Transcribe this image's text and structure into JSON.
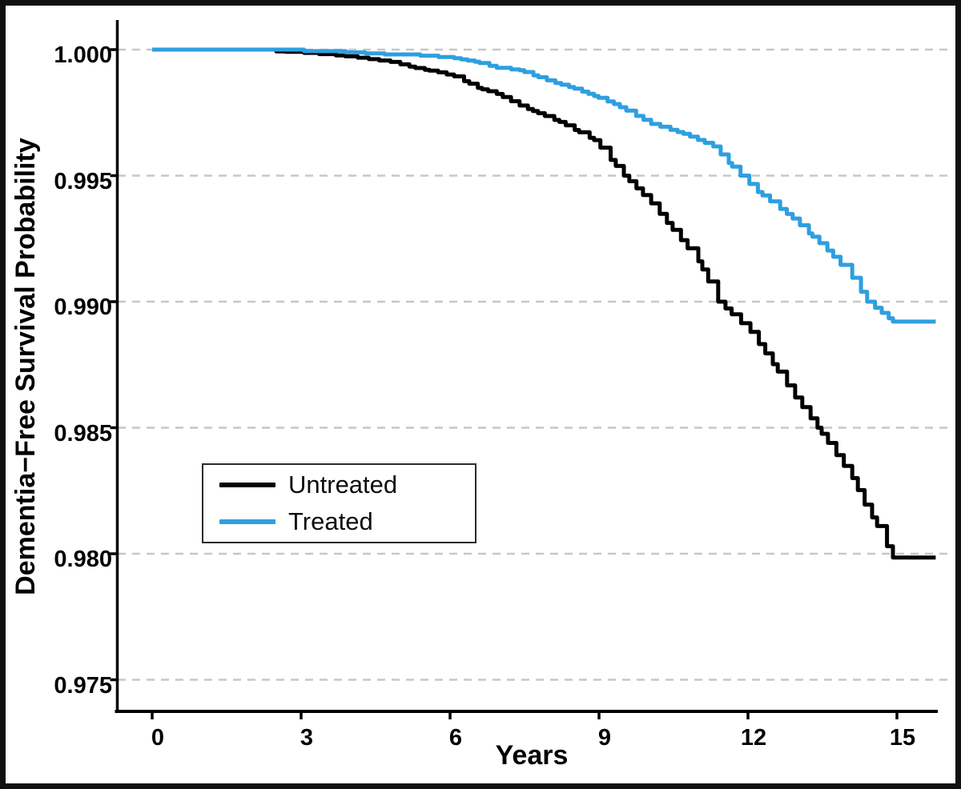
{
  "figure": {
    "y_axis_title": "Dementia−Free Survival Probability",
    "x_axis_title": "Years",
    "y_tick_labels": [
      "1.000",
      "0.995",
      "0.990",
      "0.985",
      "0.980",
      "0.975"
    ],
    "x_tick_labels": [
      "0",
      "3",
      "6",
      "9",
      "12",
      "15"
    ]
  },
  "legend": {
    "items": [
      {
        "label": "Untreated",
        "color": "#000000"
      },
      {
        "label": "Treated",
        "color": "#2E9FDF"
      }
    ]
  },
  "colors": {
    "untreated_line": "#000000",
    "treated_line": "#2E9FDF",
    "gridline": "#c7c7c7",
    "axis": "#000000",
    "background": "#ffffff",
    "outer_border": "#101010"
  },
  "chart_data": {
    "type": "line",
    "subtype": "kaplan-meier-step",
    "title": "",
    "xlabel": "Years",
    "ylabel": "Dementia−Free Survival Probability",
    "xlim": [
      0,
      15.8
    ],
    "ylim": [
      0.9735,
      1.0005
    ],
    "x_ticks": [
      0,
      3,
      6,
      9,
      12,
      15
    ],
    "y_ticks": [
      1.0,
      0.995,
      0.99,
      0.985,
      0.98,
      0.975
    ],
    "grid": "horizontal-dashed",
    "legend_position": "inside-left-middle",
    "series": [
      {
        "name": "Untreated",
        "color": "#000000",
        "points": [
          [
            0,
            1.0
          ],
          [
            2.35,
            1.0
          ],
          [
            2.5,
            0.99993
          ],
          [
            3.06,
            0.99987
          ],
          [
            3.7,
            0.99977
          ],
          [
            4.14,
            0.99968
          ],
          [
            4.8,
            0.99951
          ],
          [
            5.3,
            0.99927
          ],
          [
            5.76,
            0.9991
          ],
          [
            6.08,
            0.99894
          ],
          [
            6.56,
            0.99848
          ],
          [
            6.94,
            0.99824
          ],
          [
            7.4,
            0.99778
          ],
          [
            8.2,
            0.99713
          ],
          [
            8.9,
            0.99641
          ],
          [
            9.5,
            0.995
          ],
          [
            10.05,
            0.9939
          ],
          [
            10.65,
            0.99244
          ],
          [
            11.0,
            0.9916
          ],
          [
            11.4,
            0.99
          ],
          [
            12.05,
            0.9888
          ],
          [
            12.5,
            0.98752
          ],
          [
            12.95,
            0.9862
          ],
          [
            13.4,
            0.985
          ],
          [
            14.1,
            0.983
          ],
          [
            14.35,
            0.98195
          ],
          [
            14.6,
            0.9811
          ],
          [
            14.8,
            0.9803
          ],
          [
            14.92,
            0.97985
          ],
          [
            15.78,
            0.97985
          ]
        ]
      },
      {
        "name": "Treated",
        "color": "#2E9FDF",
        "points": [
          [
            0,
            1.0
          ],
          [
            2.9,
            1.0
          ],
          [
            3.06,
            0.99994
          ],
          [
            3.9,
            0.99989
          ],
          [
            4.68,
            0.99981
          ],
          [
            5.4,
            0.99976
          ],
          [
            6.08,
            0.99966
          ],
          [
            6.5,
            0.99952
          ],
          [
            6.94,
            0.99928
          ],
          [
            7.4,
            0.99918
          ],
          [
            7.95,
            0.99878
          ],
          [
            8.5,
            0.99845
          ],
          [
            8.9,
            0.99816
          ],
          [
            9.3,
            0.99784
          ],
          [
            10.05,
            0.99705
          ],
          [
            10.7,
            0.99666
          ],
          [
            11.3,
            0.99616
          ],
          [
            11.45,
            0.99584
          ],
          [
            11.85,
            0.995
          ],
          [
            12.2,
            0.99435
          ],
          [
            12.9,
            0.9933
          ],
          [
            13.6,
            0.99203
          ],
          [
            14.1,
            0.99095
          ],
          [
            14.4,
            0.99
          ],
          [
            14.92,
            0.98921
          ],
          [
            15.78,
            0.98921
          ]
        ]
      }
    ]
  }
}
